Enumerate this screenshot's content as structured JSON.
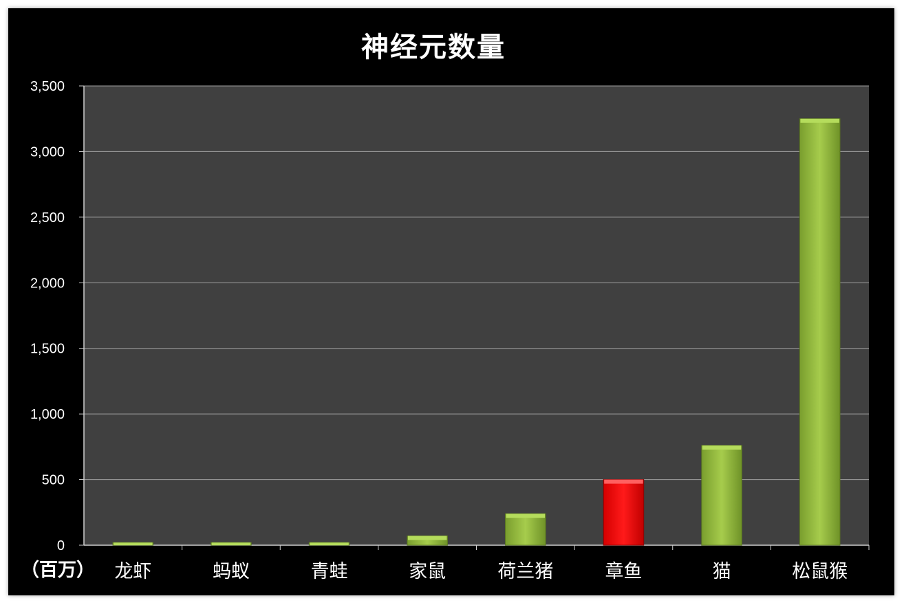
{
  "chart_data": {
    "type": "bar",
    "title": "神经元数量",
    "unit_label": "（百万）",
    "categories": [
      "龙虾",
      "蚂蚁",
      "青蛙",
      "家鼠",
      "荷兰猪",
      "章鱼",
      "猫",
      "松鼠猴"
    ],
    "values": [
      20,
      20,
      20,
      71,
      240,
      500,
      760,
      3250
    ],
    "ylim": [
      0,
      3500
    ],
    "yticks": [
      0,
      500,
      1000,
      1500,
      2000,
      2500,
      3000,
      3500
    ],
    "ytick_labels": [
      "0",
      "500",
      "1,000",
      "1,500",
      "2,000",
      "2,500",
      "3,000",
      "3,500"
    ],
    "grid": true,
    "highlight_index": 5,
    "colors": {
      "background": "#000000",
      "plot_area": "#404040",
      "bar": "#8fb83a",
      "bar_light": "#b5dc5c",
      "highlight": "#ff0000",
      "grid": "#a0a0a0"
    }
  }
}
